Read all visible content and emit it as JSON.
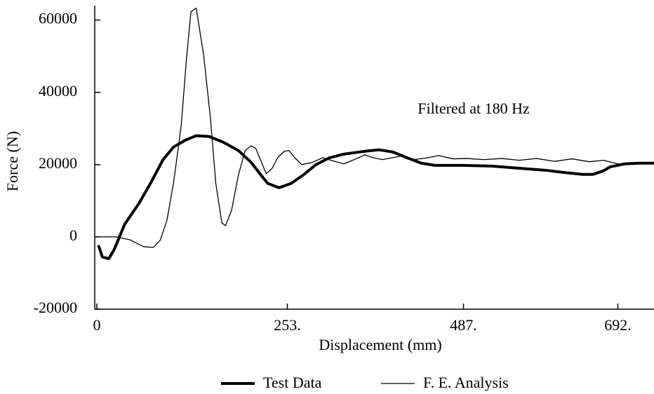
{
  "chart_data": {
    "type": "line",
    "x_label": "Displacement (mm)",
    "y_label": "Force (N)",
    "annotation": "Filtered at 180 Hz",
    "xlim": [
      0,
      740
    ],
    "ylim": [
      -20000,
      64000
    ],
    "xticks": [
      0,
      {
        "value": 253,
        "label": "253."
      },
      {
        "value": 487,
        "label": "487."
      },
      {
        "value": 692,
        "label": "692."
      }
    ],
    "yticks": [
      -20000,
      0,
      20000,
      40000,
      60000
    ],
    "legend": "bottom",
    "series": [
      {
        "name": "Test Data",
        "color": "#000000",
        "width": 4,
        "x": [
          2,
          7.5,
          16,
          23,
          37,
          56,
          72,
          88,
          102,
          118,
          132,
          149,
          168,
          188,
          205,
          218,
          227,
          242,
          258,
          274,
          291,
          309,
          328,
          356,
          375,
          393,
          412,
          431,
          449,
          486,
          524,
          561,
          598,
          617,
          645,
          659,
          673,
          682,
          701,
          719,
          740
        ],
        "values": [
          -2300,
          -5600,
          -6000,
          -3500,
          3500,
          9300,
          15100,
          21400,
          24900,
          26800,
          28000,
          27800,
          26200,
          23900,
          20600,
          17100,
          14800,
          13600,
          14800,
          17100,
          20000,
          21900,
          22900,
          23700,
          24100,
          23500,
          21900,
          20400,
          19800,
          19800,
          19600,
          19000,
          18400,
          17900,
          17300,
          17300,
          18300,
          19400,
          20200,
          20400,
          20400
        ]
      },
      {
        "name": "F. E. Analysis",
        "color": "#000000",
        "width": 1.3,
        "x": [
          2,
          25,
          44,
          62,
          75,
          84,
          93,
          102,
          112,
          119,
          125,
          132,
          142,
          151,
          158,
          166,
          171,
          179,
          188,
          197,
          205,
          211,
          218,
          225,
          233,
          240,
          249,
          255,
          263,
          272,
          286,
          300,
          314,
          328,
          342,
          356,
          367,
          379,
          393,
          407,
          421,
          440,
          454,
          473,
          491,
          514,
          538,
          561,
          584,
          608,
          631,
          654,
          673,
          692,
          715,
          740
        ],
        "values": [
          0,
          0,
          -800,
          -2700,
          -2900,
          -1000,
          4500,
          15100,
          30700,
          49100,
          62300,
          63300,
          50100,
          32600,
          14800,
          3900,
          3100,
          7400,
          17100,
          23900,
          25200,
          24500,
          21000,
          17500,
          19000,
          21900,
          23700,
          23900,
          21900,
          20000,
          20600,
          21900,
          21000,
          20200,
          21400,
          22700,
          21900,
          21400,
          21900,
          22500,
          21400,
          21900,
          22500,
          21600,
          21700,
          21400,
          21700,
          21200,
          21700,
          20900,
          21600,
          20800,
          21200,
          20200,
          20400,
          20200
        ]
      }
    ]
  }
}
